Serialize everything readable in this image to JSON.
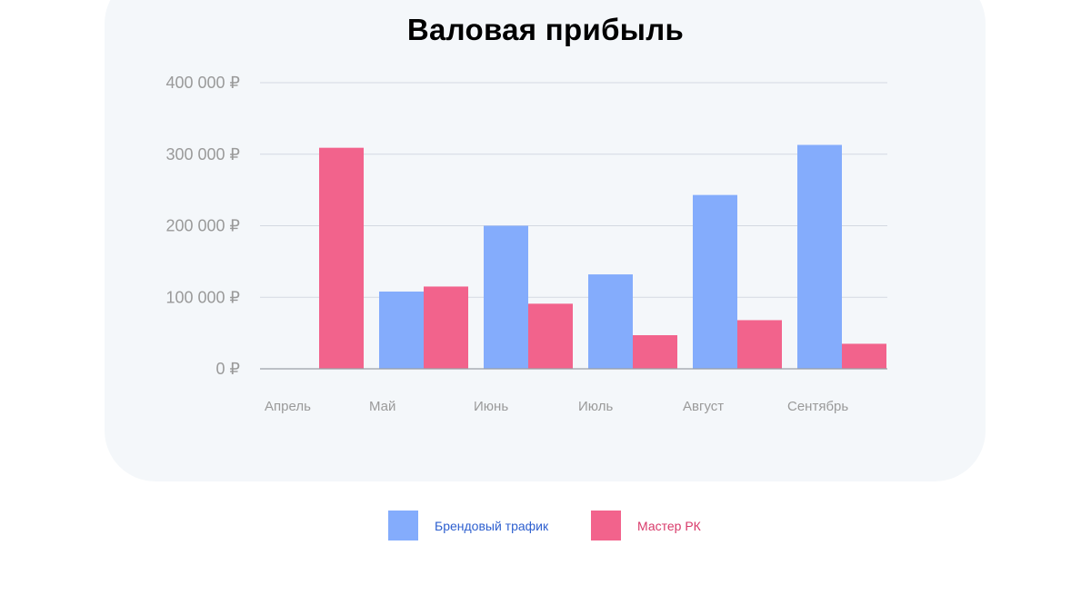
{
  "colors": {
    "blue": "#84acfc",
    "pink": "#f2638c",
    "grid": "#d3d9e1",
    "axis": "#9aa0a6",
    "tick": "#9a9a9a",
    "legend_blue_text": "#2d5fcf",
    "legend_pink_text": "#d83a6a"
  },
  "chart_data": {
    "type": "bar",
    "title": "Валовая прибыль",
    "categories": [
      "Апрель",
      "Май",
      "Июнь",
      "Июль",
      "Август",
      "Сентябрь"
    ],
    "series": [
      {
        "name": "Брендовый трафик",
        "color": "#84acfc",
        "values": [
          0,
          108000,
          200000,
          132000,
          243000,
          313000
        ]
      },
      {
        "name": "Мастер РК",
        "color": "#f2638c",
        "values": [
          309000,
          115000,
          91000,
          47000,
          68000,
          35000
        ]
      }
    ],
    "yticks": [
      0,
      100000,
      200000,
      300000,
      400000
    ],
    "ytick_labels": [
      "0 ₽",
      "100 000 ₽",
      "200 000 ₽",
      "300 000 ₽",
      "400 000 ₽"
    ],
    "ylim": [
      0,
      400000
    ],
    "grid": true,
    "legend": "bottom"
  },
  "legend": [
    {
      "label": "Брендовый трафик",
      "icon": "blue-square"
    },
    {
      "label": "Мастер РК",
      "icon": "pink-square"
    }
  ]
}
